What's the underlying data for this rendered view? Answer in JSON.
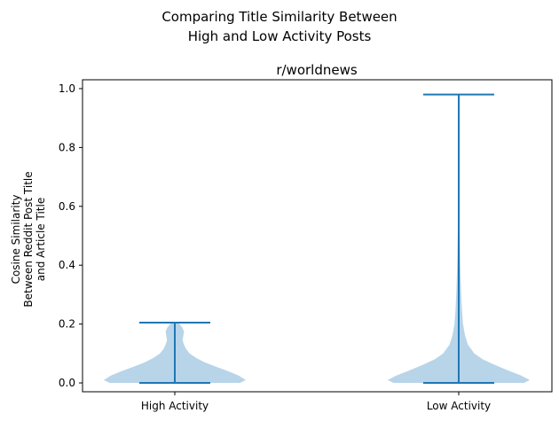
{
  "chart_data": {
    "type": "violin",
    "suptitle_lines": [
      "Comparing Title Similarity Between",
      "High and Low Activity Posts"
    ],
    "title": "r/worldnews",
    "ylabel_lines": [
      "Cosine Similarity",
      "Between Reddit Post Title",
      "and Article Title"
    ],
    "xlabel": "",
    "categories": [
      "High Activity",
      "Low Activity"
    ],
    "ylim": [
      -0.03,
      1.03
    ],
    "yticks": [
      0.0,
      0.2,
      0.4,
      0.6,
      0.8,
      1.0
    ],
    "ytick_labels": [
      "0.0",
      "0.2",
      "0.4",
      "0.6",
      "0.8",
      "1.0"
    ],
    "grid": false,
    "colors": {
      "body": "#b8d4e8",
      "lines": "#1f77b4"
    },
    "violins": [
      {
        "name": "High Activity",
        "min": 0.0,
        "max": 0.205,
        "profile": [
          {
            "y": 0.0,
            "w": 0.92
          },
          {
            "y": 0.01,
            "w": 1.0
          },
          {
            "y": 0.025,
            "w": 0.9
          },
          {
            "y": 0.04,
            "w": 0.75
          },
          {
            "y": 0.055,
            "w": 0.58
          },
          {
            "y": 0.07,
            "w": 0.42
          },
          {
            "y": 0.085,
            "w": 0.3
          },
          {
            "y": 0.1,
            "w": 0.21
          },
          {
            "y": 0.115,
            "w": 0.16
          },
          {
            "y": 0.13,
            "w": 0.13
          },
          {
            "y": 0.145,
            "w": 0.11
          },
          {
            "y": 0.16,
            "w": 0.12
          },
          {
            "y": 0.175,
            "w": 0.13
          },
          {
            "y": 0.19,
            "w": 0.1
          },
          {
            "y": 0.205,
            "w": 0.05
          }
        ]
      },
      {
        "name": "Low Activity",
        "min": 0.0,
        "max": 0.98,
        "profile": [
          {
            "y": 0.0,
            "w": 0.92
          },
          {
            "y": 0.01,
            "w": 1.0
          },
          {
            "y": 0.025,
            "w": 0.88
          },
          {
            "y": 0.04,
            "w": 0.72
          },
          {
            "y": 0.06,
            "w": 0.52
          },
          {
            "y": 0.08,
            "w": 0.34
          },
          {
            "y": 0.1,
            "w": 0.22
          },
          {
            "y": 0.13,
            "w": 0.13
          },
          {
            "y": 0.16,
            "w": 0.09
          },
          {
            "y": 0.2,
            "w": 0.06
          },
          {
            "y": 0.25,
            "w": 0.045
          },
          {
            "y": 0.3,
            "w": 0.035
          },
          {
            "y": 0.35,
            "w": 0.028
          },
          {
            "y": 0.4,
            "w": 0.022
          },
          {
            "y": 0.5,
            "w": 0.014
          },
          {
            "y": 0.6,
            "w": 0.008
          },
          {
            "y": 0.7,
            "w": 0.004
          },
          {
            "y": 0.8,
            "w": 0.002
          },
          {
            "y": 0.9,
            "w": 0.001
          },
          {
            "y": 0.98,
            "w": 0.0
          }
        ]
      }
    ]
  }
}
